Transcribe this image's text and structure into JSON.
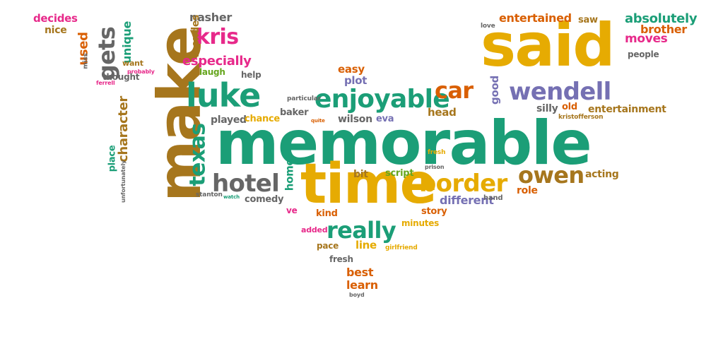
{
  "palette": {
    "green": "#1b9e77",
    "orange": "#d95f02",
    "purple": "#7570b3",
    "pink": "#e7298a",
    "lime": "#66a61e",
    "gold": "#e6ab02",
    "brown": "#a6761d",
    "grey": "#666666"
  },
  "words": [
    "memorable",
    "said",
    "make",
    "time",
    "luke",
    "enjoyable",
    "wendell",
    "car",
    "border",
    "hotel",
    "owen",
    "really",
    "texas",
    "kris",
    "especially",
    "gets",
    "character",
    "decides",
    "nice",
    "used",
    "unique",
    "nasher",
    "mendes",
    "absolutely",
    "brother",
    "place",
    "moves",
    "entertained",
    "love",
    "saw",
    "people",
    "easy",
    "plot",
    "different",
    "head",
    "silly",
    "old",
    "entertainment",
    "kristofferson",
    "role",
    "acting",
    "baker",
    "played",
    "chance",
    "wilson",
    "eva",
    "good",
    "bit",
    "script",
    "home",
    "comedy",
    "ve",
    "kind",
    "added",
    "story",
    "minutes",
    "pace",
    "line",
    "girlfriend",
    "fresh",
    "best",
    "learn",
    "boyd",
    "hand",
    "stanton",
    "unfortunately",
    "little",
    "thought",
    "laugh",
    "help",
    "want",
    "probably",
    "ferrell",
    "miss",
    "particular",
    "quite",
    "prison",
    "fresh",
    "festival",
    "watch"
  ]
}
